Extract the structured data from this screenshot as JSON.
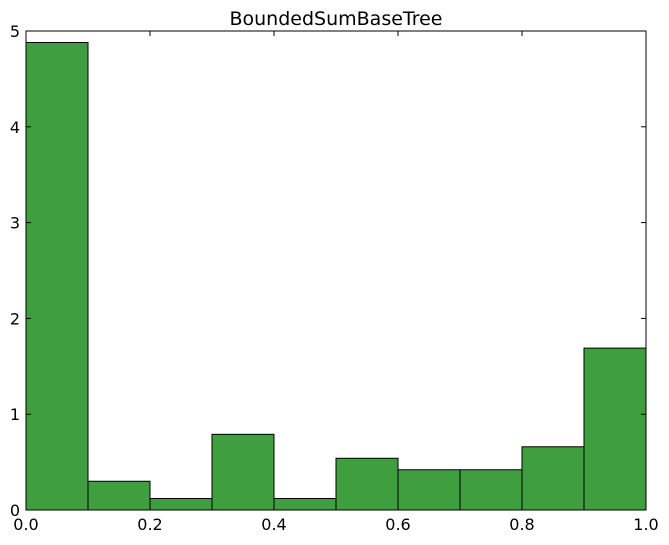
{
  "chart_data": {
    "type": "bar",
    "title": "BoundedSumBaseTree",
    "xlabel": "",
    "ylabel": "",
    "xlim": [
      0.0,
      1.0
    ],
    "ylim": [
      0,
      5
    ],
    "bins": [
      {
        "x0": 0.0,
        "x1": 0.1,
        "value": 4.88
      },
      {
        "x0": 0.1,
        "x1": 0.2,
        "value": 0.3
      },
      {
        "x0": 0.2,
        "x1": 0.3,
        "value": 0.12
      },
      {
        "x0": 0.3,
        "x1": 0.4,
        "value": 0.79
      },
      {
        "x0": 0.4,
        "x1": 0.5,
        "value": 0.12
      },
      {
        "x0": 0.5,
        "x1": 0.6,
        "value": 0.54
      },
      {
        "x0": 0.6,
        "x1": 0.7,
        "value": 0.42
      },
      {
        "x0": 0.7,
        "x1": 0.8,
        "value": 0.42
      },
      {
        "x0": 0.8,
        "x1": 0.9,
        "value": 0.66
      },
      {
        "x0": 0.9,
        "x1": 1.0,
        "value": 1.69
      }
    ],
    "x_ticks": [
      "0.0",
      "0.2",
      "0.4",
      "0.6",
      "0.8",
      "1.0"
    ],
    "y_ticks": [
      "0",
      "1",
      "2",
      "3",
      "4",
      "5"
    ],
    "grid": false,
    "legend": "none",
    "bar_color": "#3f9f3f",
    "edge_color": "#000000"
  }
}
